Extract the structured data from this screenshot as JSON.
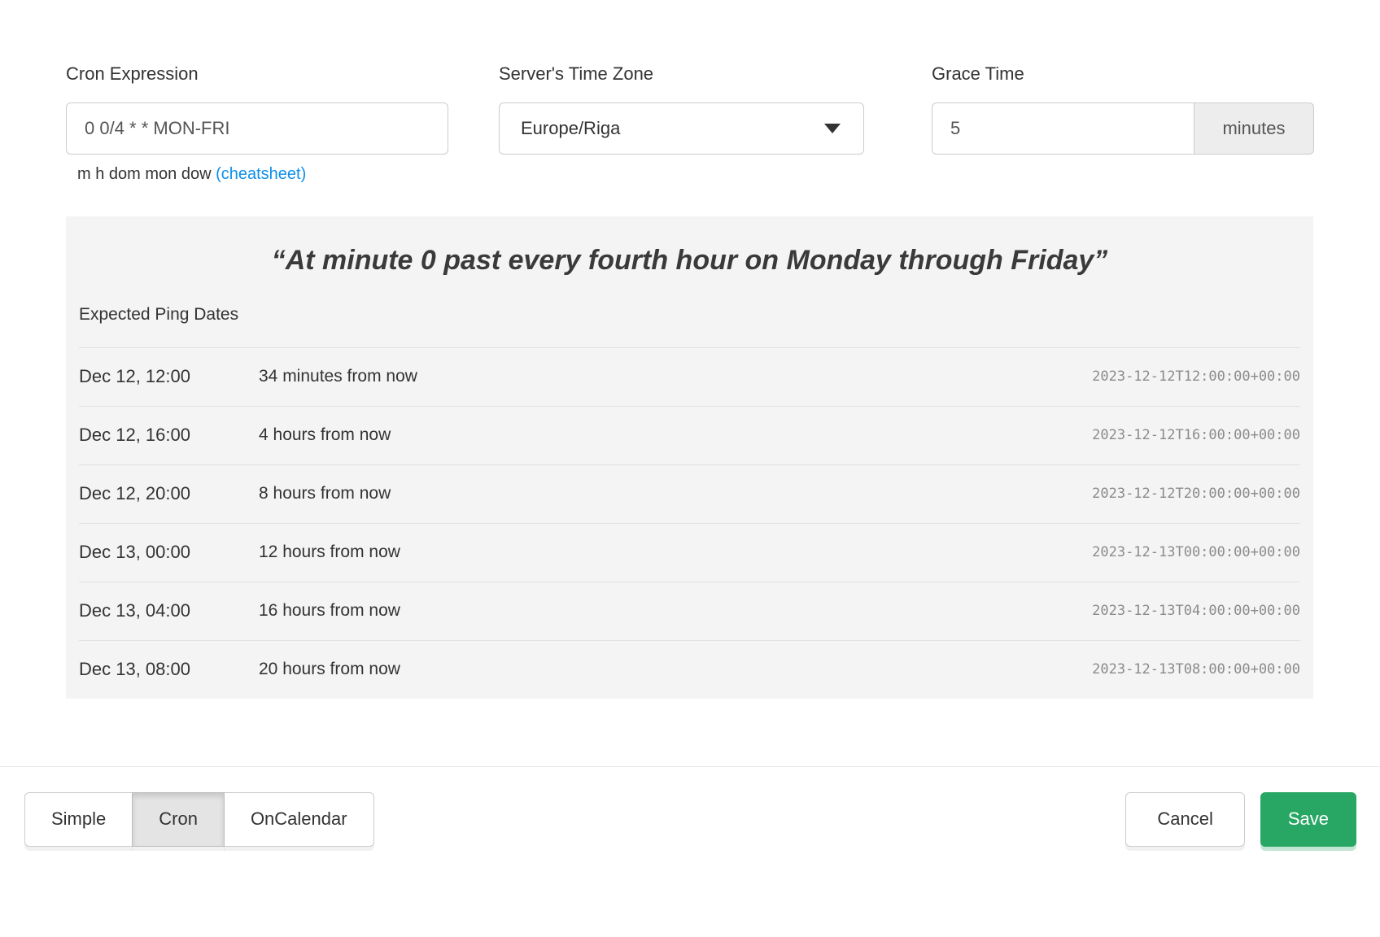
{
  "form": {
    "cron": {
      "label": "Cron Expression",
      "value": "0 0/4 * * MON-FRI",
      "helper_text": "m h dom mon dow",
      "cheatsheet_link": "(cheatsheet)"
    },
    "timezone": {
      "label": "Server's Time Zone",
      "selected": "Europe/Riga"
    },
    "grace": {
      "label": "Grace Time",
      "value": "5",
      "unit": "minutes"
    }
  },
  "preview": {
    "description": "“At minute 0 past every fourth hour on Monday through Friday”",
    "table_title": "Expected Ping Dates",
    "rows": [
      {
        "date": "Dec 12, 12:00",
        "relative": "34 minutes from now",
        "iso": "2023-12-12T12:00:00+00:00"
      },
      {
        "date": "Dec 12, 16:00",
        "relative": "4 hours from now",
        "iso": "2023-12-12T16:00:00+00:00"
      },
      {
        "date": "Dec 12, 20:00",
        "relative": "8 hours from now",
        "iso": "2023-12-12T20:00:00+00:00"
      },
      {
        "date": "Dec 13, 00:00",
        "relative": "12 hours from now",
        "iso": "2023-12-13T00:00:00+00:00"
      },
      {
        "date": "Dec 13, 04:00",
        "relative": "16 hours from now",
        "iso": "2023-12-13T04:00:00+00:00"
      },
      {
        "date": "Dec 13, 08:00",
        "relative": "20 hours from now",
        "iso": "2023-12-13T08:00:00+00:00"
      }
    ]
  },
  "footer": {
    "modes": [
      {
        "label": "Simple",
        "active": false
      },
      {
        "label": "Cron",
        "active": true
      },
      {
        "label": "OnCalendar",
        "active": false
      }
    ],
    "cancel_label": "Cancel",
    "save_label": "Save"
  },
  "icons": {
    "timezone_caret": "chevron-down"
  },
  "colors": {
    "accent_green": "#28a764",
    "link_blue": "#0e8fe9",
    "panel_background": "#f4f4f4",
    "divider": "#e1e1e1",
    "timestamp_gray": "#8b8b8b"
  }
}
